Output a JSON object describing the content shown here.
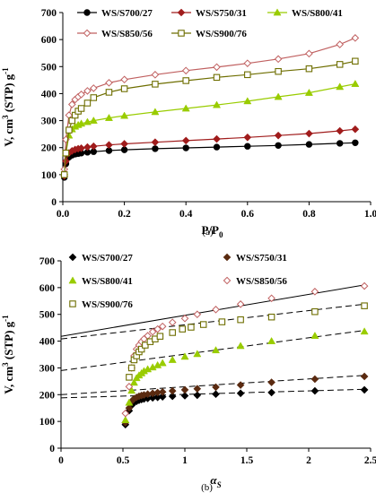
{
  "chart_data": [
    {
      "type": "line",
      "panel_label": "(a)",
      "xlabel": "P/P",
      "xlabel_sub": "0",
      "ylabel": "V, cm",
      "ylabel_sup": "3",
      "ylabel_mid": " (STP) g",
      "ylabel_sup2": "-1",
      "xlim": [
        0,
        1
      ],
      "ylim": [
        0,
        700
      ],
      "xticks": [
        "0.0",
        "0.2",
        "0.4",
        "0.6",
        "0.8",
        "1.0"
      ],
      "yticks": [
        "0",
        "100",
        "200",
        "300",
        "400",
        "500",
        "600",
        "700"
      ],
      "grid": false,
      "legend_position": "top",
      "series": [
        {
          "name": "WS/S700/27",
          "color": "#000000",
          "marker": "filled-circle",
          "x": [
            0.005,
            0.01,
            0.02,
            0.03,
            0.04,
            0.05,
            0.06,
            0.08,
            0.1,
            0.15,
            0.2,
            0.3,
            0.4,
            0.5,
            0.6,
            0.7,
            0.8,
            0.9,
            0.95
          ],
          "y": [
            90,
            140,
            165,
            172,
            176,
            178,
            180,
            183,
            185,
            189,
            192,
            196,
            199,
            202,
            205,
            208,
            212,
            216,
            218
          ]
        },
        {
          "name": "WS/S750/31",
          "color": "#a01c1c",
          "marker": "filled-diamond",
          "x": [
            0.005,
            0.01,
            0.02,
            0.03,
            0.04,
            0.05,
            0.06,
            0.08,
            0.1,
            0.15,
            0.2,
            0.3,
            0.4,
            0.5,
            0.6,
            0.7,
            0.8,
            0.9,
            0.95
          ],
          "y": [
            95,
            150,
            180,
            188,
            193,
            196,
            198,
            202,
            205,
            210,
            214,
            220,
            226,
            232,
            238,
            245,
            252,
            262,
            268
          ]
        },
        {
          "name": "WS/S800/41",
          "color": "#99cc00",
          "marker": "filled-triangle",
          "x": [
            0.005,
            0.01,
            0.02,
            0.03,
            0.04,
            0.05,
            0.06,
            0.08,
            0.1,
            0.15,
            0.2,
            0.3,
            0.4,
            0.5,
            0.6,
            0.7,
            0.8,
            0.9,
            0.95
          ],
          "y": [
            110,
            180,
            245,
            268,
            278,
            284,
            289,
            295,
            300,
            310,
            318,
            332,
            345,
            358,
            372,
            388,
            403,
            425,
            436
          ]
        },
        {
          "name": "WS/S850/56",
          "color": "#c06060",
          "marker": "open-diamond",
          "x": [
            0.005,
            0.01,
            0.02,
            0.03,
            0.04,
            0.05,
            0.06,
            0.08,
            0.1,
            0.15,
            0.2,
            0.3,
            0.4,
            0.5,
            0.6,
            0.7,
            0.8,
            0.9,
            0.95
          ],
          "y": [
            120,
            230,
            320,
            360,
            378,
            388,
            397,
            410,
            420,
            440,
            452,
            470,
            485,
            498,
            512,
            528,
            548,
            582,
            606
          ]
        },
        {
          "name": "WS/S900/76",
          "color": "#6e6e00",
          "marker": "open-square",
          "x": [
            0.005,
            0.01,
            0.02,
            0.03,
            0.04,
            0.05,
            0.06,
            0.08,
            0.1,
            0.15,
            0.2,
            0.3,
            0.4,
            0.5,
            0.6,
            0.7,
            0.8,
            0.9,
            0.95
          ],
          "y": [
            100,
            180,
            265,
            300,
            320,
            335,
            345,
            365,
            385,
            405,
            418,
            435,
            448,
            460,
            470,
            482,
            492,
            508,
            520
          ]
        }
      ]
    },
    {
      "type": "scatter",
      "panel_label": "(b)",
      "xlabel": "α",
      "xlabel_sub": "S",
      "ylabel": "V, cm",
      "ylabel_sup": "3",
      "ylabel_mid": " (STP) g",
      "ylabel_sup2": "-1",
      "xlim": [
        0,
        2.5
      ],
      "ylim": [
        0,
        700
      ],
      "xticks": [
        "0",
        "0.5",
        "1",
        "1.5",
        "2",
        "2.5"
      ],
      "yticks": [
        "0",
        "100",
        "200",
        "300",
        "400",
        "500",
        "600",
        "700"
      ],
      "grid": false,
      "legend_position": "top",
      "series": [
        {
          "name": "WS/S700/27",
          "color": "#000000",
          "marker": "filled-diamond",
          "fit": {
            "x": [
              0,
              2.45
            ],
            "y": [
              188,
              220
            ],
            "style": "dashed"
          },
          "x": [
            0.52,
            0.55,
            0.57,
            0.59,
            0.61,
            0.63,
            0.65,
            0.67,
            0.7,
            0.74,
            0.78,
            0.82,
            0.9,
            1.0,
            1.1,
            1.25,
            1.45,
            1.7,
            2.05,
            2.45
          ],
          "y": [
            88,
            140,
            160,
            170,
            175,
            179,
            182,
            184,
            186,
            188,
            190,
            192,
            194,
            196,
            198,
            202,
            205,
            208,
            214,
            218
          ]
        },
        {
          "name": "WS/S750/31",
          "color": "#5a2a10",
          "marker": "filled-diamond",
          "fit": {
            "x": [
              0,
              2.45
            ],
            "y": [
              200,
              272
            ],
            "style": "dashed"
          },
          "x": [
            0.52,
            0.55,
            0.57,
            0.59,
            0.61,
            0.63,
            0.65,
            0.67,
            0.7,
            0.74,
            0.78,
            0.82,
            0.9,
            1.0,
            1.1,
            1.25,
            1.45,
            1.7,
            2.05,
            2.45
          ],
          "y": [
            95,
            150,
            175,
            185,
            190,
            194,
            197,
            199,
            202,
            205,
            208,
            210,
            214,
            218,
            222,
            228,
            236,
            246,
            258,
            268
          ]
        },
        {
          "name": "WS/S800/41",
          "color": "#99cc00",
          "marker": "filled-triangle",
          "fit": {
            "x": [
              0,
              2.45
            ],
            "y": [
              290,
              440
            ],
            "style": "dashed"
          },
          "x": [
            0.52,
            0.55,
            0.57,
            0.59,
            0.61,
            0.63,
            0.65,
            0.67,
            0.7,
            0.74,
            0.78,
            0.82,
            0.9,
            1.0,
            1.1,
            1.25,
            1.45,
            1.7,
            2.05,
            2.45
          ],
          "y": [
            105,
            170,
            215,
            245,
            262,
            272,
            280,
            288,
            295,
            302,
            310,
            318,
            330,
            342,
            352,
            366,
            382,
            400,
            420,
            436
          ]
        },
        {
          "name": "WS/S850/56",
          "color": "#c06060",
          "marker": "open-diamond",
          "fit": {
            "x": [
              0,
              2.45
            ],
            "y": [
              418,
              610
            ],
            "style": "solid"
          },
          "x": [
            0.52,
            0.55,
            0.57,
            0.59,
            0.61,
            0.63,
            0.65,
            0.67,
            0.7,
            0.74,
            0.78,
            0.82,
            0.9,
            1.0,
            1.1,
            1.25,
            1.45,
            1.7,
            2.05,
            2.45
          ],
          "y": [
            130,
            230,
            300,
            345,
            370,
            385,
            398,
            408,
            420,
            435,
            445,
            455,
            470,
            485,
            500,
            518,
            538,
            560,
            585,
            606
          ]
        },
        {
          "name": "WS/S900/76",
          "color": "#6e6e00",
          "marker": "open-square",
          "fit": {
            "x": [
              0,
              2.45
            ],
            "y": [
              408,
              538
            ],
            "style": "dashed"
          },
          "x": [
            0.55,
            0.57,
            0.59,
            0.61,
            0.63,
            0.65,
            0.68,
            0.72,
            0.76,
            0.8,
            0.9,
            0.98,
            1.05,
            1.15,
            1.3,
            1.45,
            1.7,
            2.05,
            2.45
          ],
          "y": [
            265,
            300,
            330,
            345,
            360,
            370,
            385,
            398,
            408,
            418,
            432,
            445,
            452,
            462,
            472,
            480,
            490,
            510,
            532
          ]
        }
      ]
    }
  ]
}
